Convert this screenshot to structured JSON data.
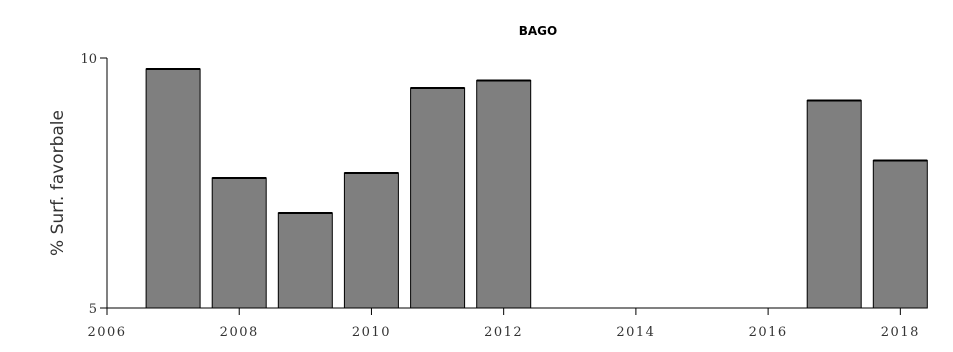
{
  "chart_data": {
    "type": "bar",
    "title": "BAGO",
    "xlabel": "",
    "ylabel": "% Surf. favorbale",
    "x": [
      2007,
      2008,
      2009,
      2010,
      2011,
      2012,
      2017,
      2018
    ],
    "values": [
      9.78,
      7.6,
      6.9,
      7.7,
      9.4,
      9.55,
      9.15,
      7.95
    ],
    "xlim": [
      2006,
      2018.6
    ],
    "ylim": [
      5,
      10
    ],
    "x_ticks": [
      2006,
      2008,
      2010,
      2012,
      2014,
      2016,
      2018
    ],
    "x_tick_labels": [
      "2006",
      "2008",
      "2010",
      "2012",
      "2014",
      "2016",
      "2018"
    ],
    "y_ticks": [
      5,
      10
    ],
    "y_tick_labels": [
      "5",
      "10"
    ],
    "bar_color": "#7f7f7f",
    "grid": false,
    "legend": "none"
  }
}
